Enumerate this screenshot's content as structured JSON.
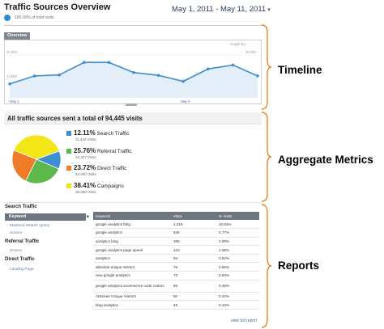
{
  "header": {
    "title": "Traffic Sources Overview",
    "subtitle": "100.00% of total visits",
    "date_range": "May 1, 2011 - May 11, 2011",
    "date_caret": "▾"
  },
  "overview": {
    "tab_label": "Overview",
    "graph_by": "Graph by:",
    "ytick_top": "20,000",
    "ytick_mid": "10,000",
    "ytick_right_top": "20,000",
    "ytick_right_mid": "10,000",
    "xlabel_1": "May 1",
    "xlabel_2": "May 8"
  },
  "chart_data": {
    "type": "area",
    "x": [
      "May 1",
      "May 2",
      "May 3",
      "May 4",
      "May 5",
      "May 6",
      "May 7",
      "May 8",
      "May 9",
      "May 10",
      "May 11"
    ],
    "series": [
      {
        "values": [
          7000,
          11000,
          11500,
          17800,
          17800,
          12700,
          11300,
          8300,
          14500,
          16500,
          11000
        ]
      }
    ],
    "ylim": [
      0,
      26000
    ],
    "color": "#3e8fd1",
    "fill": "#e3eef8"
  },
  "aggregate": {
    "summary": "All traffic sources sent a total of 94,445 visits",
    "pie_data": [
      {
        "name": "Search Traffic",
        "percent": 12.11,
        "color": "#3d8fd4"
      },
      {
        "name": "Referral Traffic",
        "percent": 25.76,
        "color": "#5cb84a"
      },
      {
        "name": "Direct Traffic",
        "percent": 23.72,
        "color": "#ef7b2a"
      },
      {
        "name": "Campaigns",
        "percent": 38.41,
        "color": "#f2e616"
      }
    ],
    "metrics": [
      {
        "pct": "12.11%",
        "label": "Search Traffic",
        "visits": "11,440 Visits",
        "color": "#3d8fd4"
      },
      {
        "pct": "25.76%",
        "label": "Referral Traffic",
        "visits": "24,327 Visits",
        "color": "#5cb84a"
      },
      {
        "pct": "23.72%",
        "label": "Direct Traffic",
        "visits": "22,400 Visits",
        "color": "#ef7b2a"
      },
      {
        "pct": "38.41%",
        "label": "Campaigns",
        "visits": "36,269 Visits",
        "color": "#f2e616"
      }
    ]
  },
  "reports": {
    "nav": {
      "search_head": "Search Traffic",
      "keyword": "Keyword",
      "matched": "Matched Search Query",
      "source1": "Source",
      "referral_head": "Referral Traffic",
      "source2": "Source",
      "direct_head": "Direct Traffic",
      "landing": "Landing Page"
    },
    "columns": [
      "Keyword",
      "Visits",
      "% Visits"
    ],
    "rows": [
      [
        "google analytics blog",
        "1,216",
        "10.63%"
      ],
      [
        "google analytics",
        "546",
        "4.77%"
      ],
      [
        "analytics blog",
        "295",
        "2.58%"
      ],
      [
        "google analytics page speed",
        "123",
        "1.08%"
      ],
      [
        "analytics",
        "94",
        "0.82%"
      ],
      [
        "absolute unique visitors",
        "76",
        "0.66%"
      ],
      [
        "new google analytics",
        "73",
        "0.64%"
      ],
      [
        "google analytics ecommerce code cutroni",
        "56",
        "0.49%"
      ],
      [
        "Absolute Unique Visitors",
        "50",
        "0.44%"
      ],
      [
        "blog analytics",
        "49",
        "0.43%"
      ]
    ],
    "view_full": "view full report"
  },
  "annotations": {
    "timeline": "Timeline",
    "aggregate": "Aggregate Metrics",
    "reports": "Reports"
  }
}
